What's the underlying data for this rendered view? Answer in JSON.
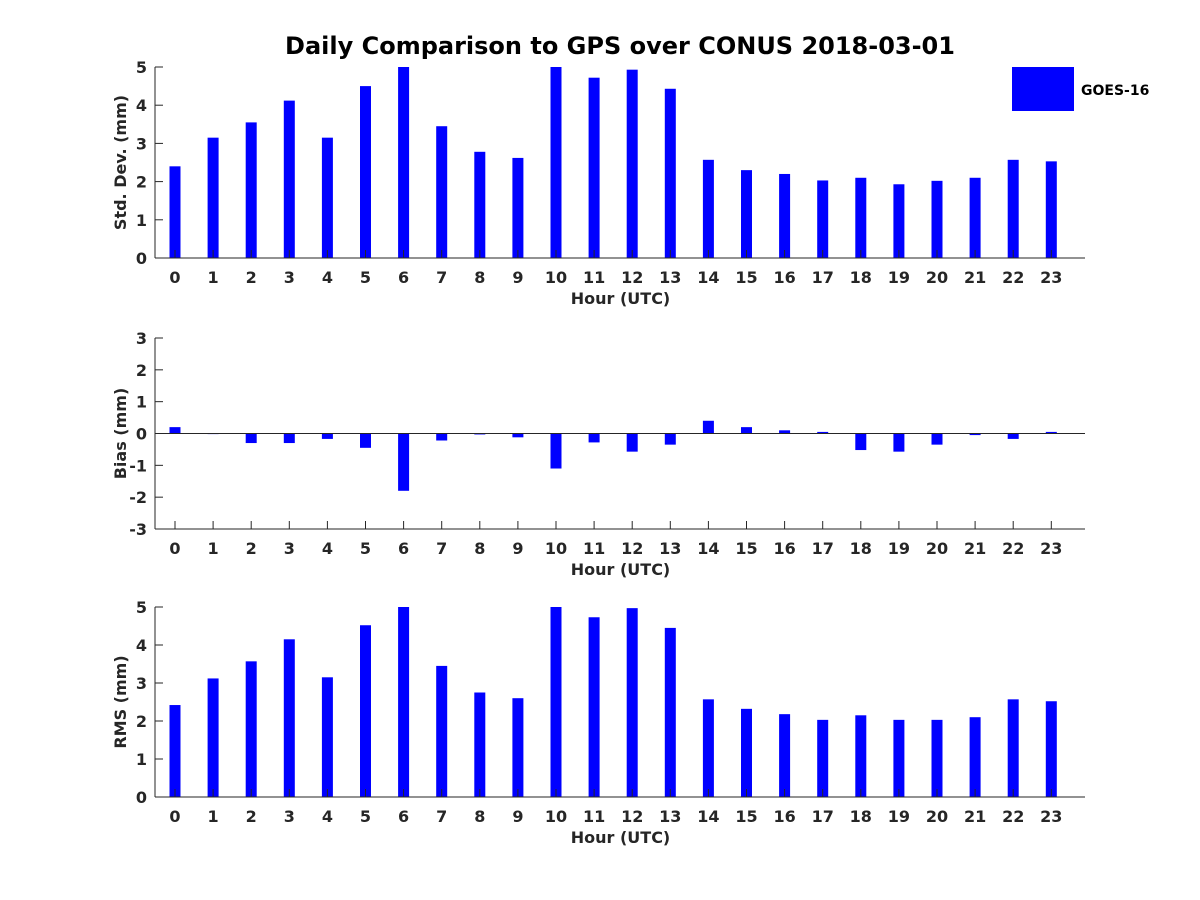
{
  "chart_data": {
    "title": "Daily Comparison to GPS over CONUS 2018-03-01",
    "legend": {
      "label": "GOES-16",
      "color": "#0000ff",
      "placement": "top-right"
    },
    "bar_color": "#0000ff",
    "categories": [
      "0",
      "1",
      "2",
      "3",
      "4",
      "5",
      "6",
      "7",
      "8",
      "9",
      "10",
      "11",
      "12",
      "13",
      "14",
      "15",
      "16",
      "17",
      "18",
      "19",
      "20",
      "21",
      "22",
      "23"
    ],
    "panels": [
      {
        "id": "std",
        "type": "bar",
        "ylabel": "Std. Dev. (mm)",
        "xlabel": "Hour (UTC)",
        "ylim": [
          0,
          5
        ],
        "yticks": [
          0,
          1,
          2,
          3,
          4,
          5
        ],
        "values": [
          2.4,
          3.15,
          3.55,
          4.12,
          3.15,
          4.5,
          5.0,
          3.45,
          2.78,
          2.62,
          5.0,
          4.72,
          4.93,
          4.43,
          2.57,
          2.3,
          2.2,
          2.03,
          2.1,
          1.93,
          2.02,
          2.1,
          2.57,
          2.53
        ]
      },
      {
        "id": "bias",
        "type": "bar",
        "ylabel": "Bias (mm)",
        "xlabel": "Hour (UTC)",
        "ylim": [
          -3,
          3
        ],
        "yticks": [
          -3,
          -2,
          -1,
          0,
          1,
          2,
          3
        ],
        "values": [
          0.2,
          0.0,
          -0.3,
          -0.3,
          -0.17,
          -0.45,
          -1.8,
          -0.22,
          -0.03,
          -0.12,
          -1.1,
          -0.28,
          -0.57,
          -0.35,
          0.4,
          0.2,
          0.1,
          0.05,
          -0.52,
          -0.57,
          -0.35,
          -0.05,
          -0.17,
          0.05
        ]
      },
      {
        "id": "rms",
        "type": "bar",
        "ylabel": "RMS (mm)",
        "xlabel": "Hour (UTC)",
        "ylim": [
          0,
          5
        ],
        "yticks": [
          0,
          1,
          2,
          3,
          4,
          5
        ],
        "values": [
          2.42,
          3.12,
          3.57,
          4.15,
          3.15,
          4.52,
          5.0,
          3.45,
          2.75,
          2.6,
          5.0,
          4.73,
          4.97,
          4.45,
          2.57,
          2.32,
          2.18,
          2.03,
          2.15,
          2.03,
          2.03,
          2.1,
          2.57,
          2.52
        ]
      }
    ]
  }
}
